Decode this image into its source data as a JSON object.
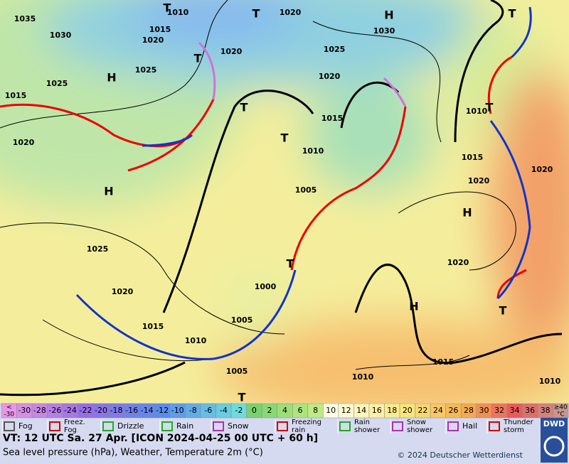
{
  "map": {
    "labels": [
      "1035",
      "1030",
      "1020",
      "1015",
      "1010",
      "T",
      "T",
      "1020",
      "H",
      "1030",
      "1025",
      "1020",
      "T",
      "1025",
      "H",
      "1025",
      "1015",
      "1020",
      "T",
      "1015",
      "T",
      "1010",
      "1020",
      "H",
      "1005",
      "1025",
      "1020",
      "1000",
      "T",
      "1005",
      "1015",
      "1010",
      "1005",
      "H",
      "T",
      "H",
      "1020",
      "1020",
      "1015",
      "1010",
      "T",
      "T",
      "1020",
      "1015",
      "1010",
      "1010",
      "T"
    ]
  },
  "temperature_scale": {
    "low": [
      "<",
      "-30"
    ],
    "steps": [
      -30,
      -28,
      -26,
      -24,
      -22,
      -20,
      -18,
      -16,
      -14,
      -12,
      -10,
      -8,
      -6,
      -4,
      -2,
      0,
      2,
      4,
      6,
      8,
      10,
      12,
      14,
      16,
      18,
      20,
      22,
      24,
      26,
      28,
      30,
      32,
      34,
      36,
      38
    ],
    "high": [
      "≥40",
      "°C"
    ]
  },
  "weather_legend": [
    [
      "Fog"
    ],
    [
      "Freez.",
      "Fog"
    ],
    [
      "Drizzle"
    ],
    [
      "Rain"
    ],
    [
      "Snow"
    ],
    [
      "Freezing",
      "rain"
    ],
    [
      "Rain",
      "shower"
    ],
    [
      "Snow",
      "shower"
    ],
    [
      "Hail"
    ],
    [
      "Thunder",
      "storm"
    ]
  ],
  "footer": {
    "valid_time": "VT: 12 UTC Sa.  27 Apr. [ICON 2024-04-25  00 UTC + 60 h]",
    "description": "Sea level pressure (hPa), Weather, Temperature 2m (°C)",
    "copyright": "© 2024 Deutscher Wetterdienst",
    "logo": "DWD"
  }
}
